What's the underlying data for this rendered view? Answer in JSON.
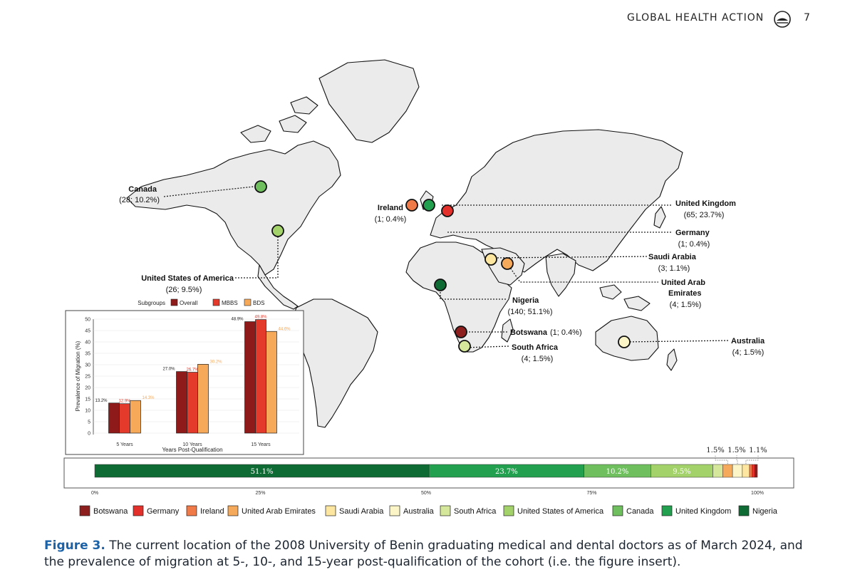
{
  "header": {
    "journal": "GLOBAL HEALTH ACTION",
    "page": "7"
  },
  "colors": {
    "Nigeria": "#0f6b34",
    "United Kingdom": "#23a04f",
    "Canada": "#6fbf5f",
    "United States of America": "#a3d16a",
    "South Africa": "#d4e79a",
    "Australia": "#fbf5c7",
    "Saudi Arabia": "#fde6a0",
    "United Arab Emirates": "#f5a95a",
    "Ireland": "#f07a48",
    "Germany": "#e4302a",
    "Botswana": "#8e1f1f",
    "Overall": "#8e1a1a",
    "MBBS": "#e33a2b",
    "BDS": "#f7a95a"
  },
  "map_labels": [
    {
      "name": "Canada",
      "stats": "(28; 10.2%)"
    },
    {
      "name": "United States of America",
      "stats": "(26; 9.5%)"
    },
    {
      "name": "Ireland",
      "stats": "(1; 0.4%)"
    },
    {
      "name": "United Kingdom",
      "stats": "(65; 23.7%)"
    },
    {
      "name": "Germany",
      "stats": "(1; 0.4%)"
    },
    {
      "name": "Saudi Arabia",
      "stats": "(3; 1.1%)"
    },
    {
      "name": "United Arab Emirates",
      "stats": "(4; 1.5%)"
    },
    {
      "name": "Nigeria",
      "stats": "(140; 51.1%)"
    },
    {
      "name": "Botswana",
      "stats": "(1; 0.4%)"
    },
    {
      "name": "South Africa",
      "stats": "(4; 1.5%)"
    },
    {
      "name": "Australia",
      "stats": "(4; 1.5%)"
    }
  ],
  "uae_label_lines": [
    "United Arab",
    "Emirates"
  ],
  "chart_data": [
    {
      "type": "bar",
      "title": "Subgroups",
      "xlabel": "Years Post-Qualification",
      "ylabel": "Prevalence of Migration (%)",
      "ylim": [
        0,
        50
      ],
      "yticks": [
        "0",
        "5",
        "10",
        "15",
        "20",
        "25",
        "30",
        "35",
        "40",
        "45",
        "50"
      ],
      "categories": [
        "5 Years",
        "10 Years",
        "15 Years"
      ],
      "series": [
        {
          "name": "Overall",
          "values": [
            13.2,
            27.0,
            48.9
          ],
          "labels": [
            "13.2%",
            "27.0%",
            "48.9%"
          ]
        },
        {
          "name": "MBBS",
          "values": [
            12.9,
            26.7,
            49.8
          ],
          "labels": [
            "12.9%",
            "26.7%",
            "49.8%"
          ]
        },
        {
          "name": "BDS",
          "values": [
            14.3,
            30.2,
            44.6
          ],
          "labels": [
            "14.3%",
            "30.2%",
            "44.6%"
          ]
        }
      ],
      "legend": "top"
    },
    {
      "type": "bar",
      "subtype": "stacked-100-horizontal",
      "categories": [
        "Nigeria",
        "United Kingdom",
        "Canada",
        "United States of America",
        "South Africa",
        "United Arab Emirates",
        "Australia",
        "Saudi Arabia",
        "Ireland",
        "Germany",
        "Botswana"
      ],
      "values": [
        51.1,
        23.7,
        10.2,
        9.5,
        1.5,
        1.5,
        1.5,
        1.1,
        0.4,
        0.4,
        0.4
      ],
      "segment_labels": [
        "51.1%",
        "23.7%",
        "10.2%",
        "9.5%"
      ],
      "small_annotations": [
        "1.5%",
        "1.5%",
        "1.1%"
      ],
      "xticks": [
        "0%",
        "25%",
        "50%",
        "75%",
        "100%"
      ],
      "legend_order": [
        "Botswana",
        "Germany",
        "Ireland",
        "United Arab Emirates",
        "Saudi Arabia",
        "Australia",
        "South Africa",
        "United States of America",
        "Canada",
        "United Kingdom",
        "Nigeria"
      ],
      "legend": "bottom"
    }
  ],
  "caption": {
    "label": "Figure 3.",
    "text": " The current location of the 2008 University of Benin graduating medical and dental doctors as of March 2024, and the prevalence of migration at 5-, 10-, and 15-year post-qualification of the cohort (i.e. the figure insert)."
  }
}
